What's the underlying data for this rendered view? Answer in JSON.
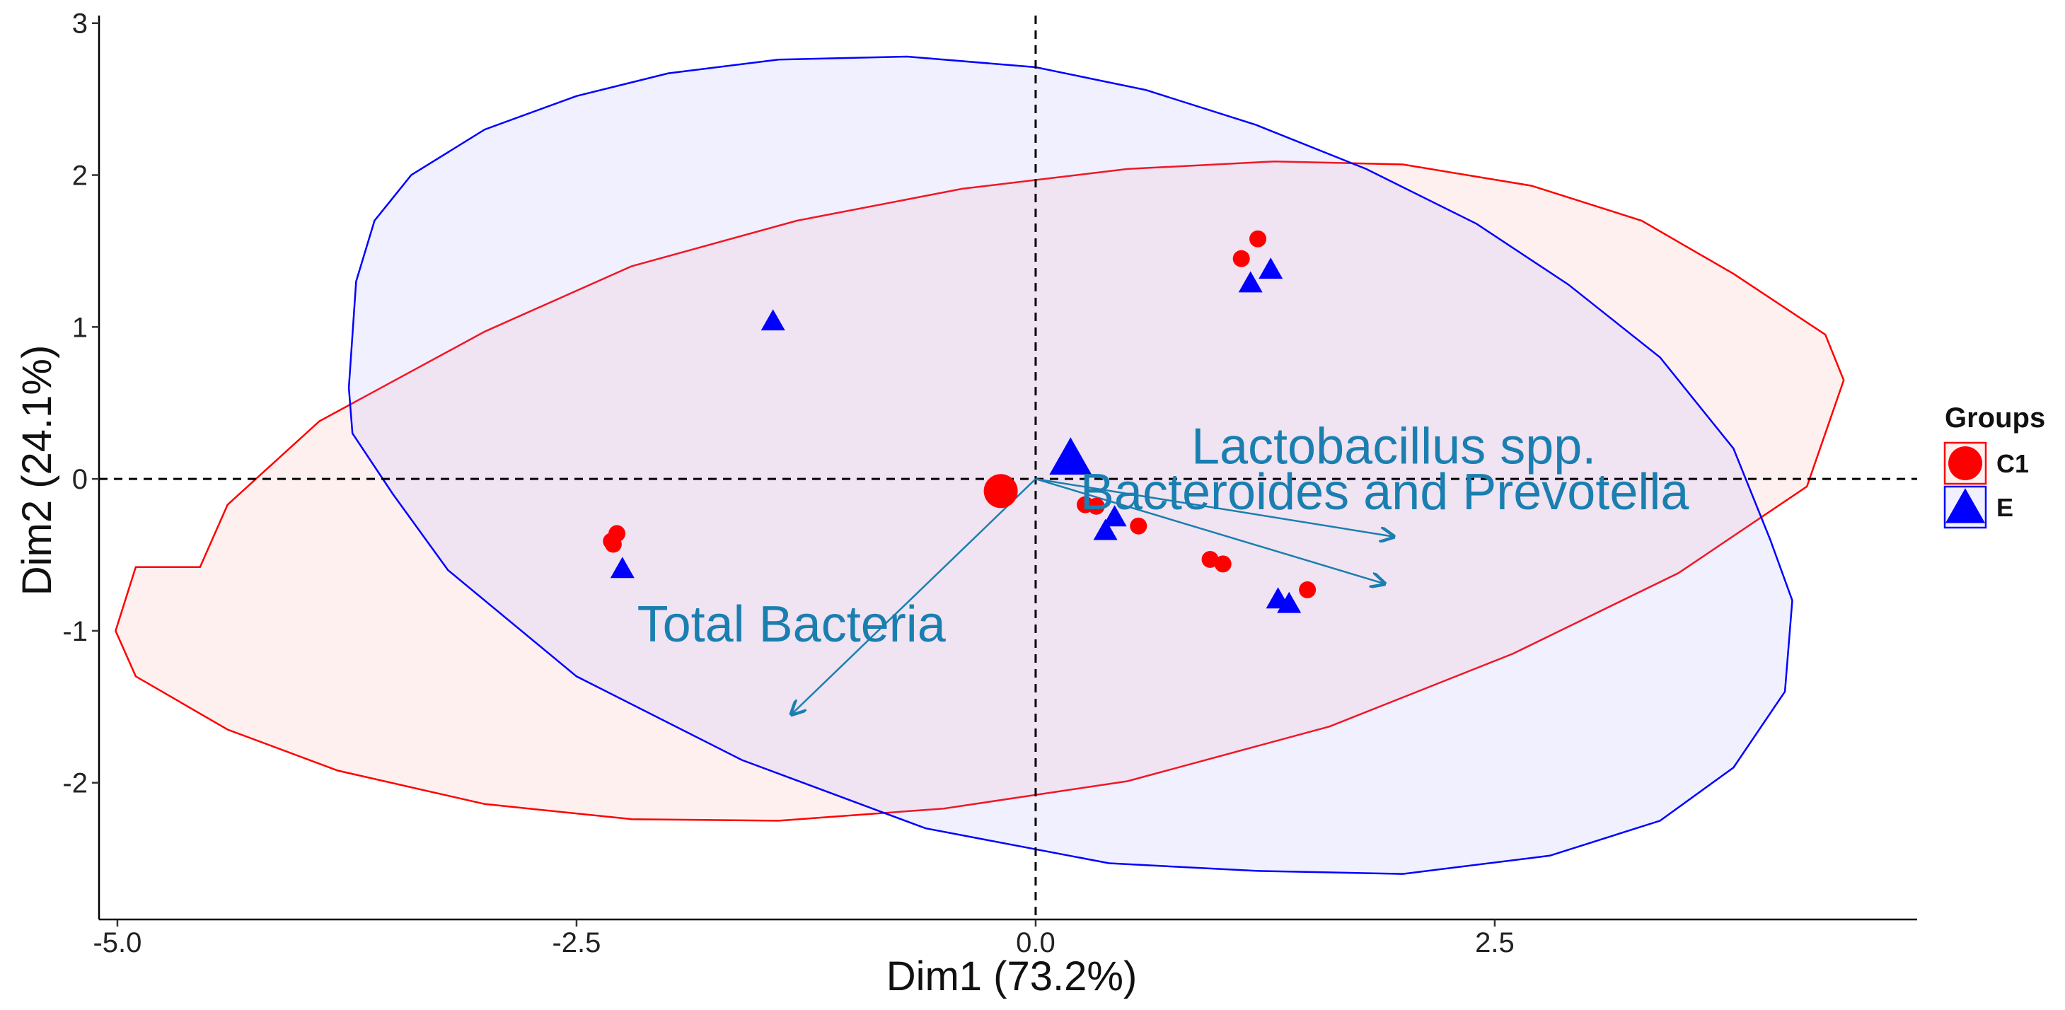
{
  "chart_data": {
    "type": "scatter",
    "subtype": "PCA biplot",
    "xlabel": "Dim1 (73.2%)",
    "ylabel": "Dim2 (24.1%)",
    "xlim": [
      -5.1,
      4.8
    ],
    "ylim": [
      -2.9,
      3.05
    ],
    "xticks": [
      -5.0,
      -2.5,
      0.0,
      2.5
    ],
    "xtick_labels": [
      "-5.0",
      "-2.5",
      "0.0",
      "2.5"
    ],
    "yticks": [
      -2,
      -1,
      0,
      1,
      2,
      3
    ],
    "ytick_labels": [
      "-2",
      "-1",
      "0",
      "1",
      "2",
      "3"
    ],
    "reference_lines": {
      "x": 0,
      "y": 0,
      "style": "dashed"
    },
    "legend": {
      "title": "Groups",
      "position": "right"
    },
    "series": [
      {
        "name": "C1",
        "marker": "circle",
        "color": "#ff0000",
        "fill": "#ff9999",
        "points": [
          {
            "x": 1.12,
            "y": 1.45
          },
          {
            "x": 1.21,
            "y": 1.58
          },
          {
            "x": -2.28,
            "y": -0.36
          },
          {
            "x": -2.31,
            "y": -0.41
          },
          {
            "x": -2.3,
            "y": -0.43
          },
          {
            "x": 0.27,
            "y": -0.17
          },
          {
            "x": 0.33,
            "y": -0.18
          },
          {
            "x": 0.56,
            "y": -0.31
          },
          {
            "x": 0.95,
            "y": -0.53
          },
          {
            "x": 1.02,
            "y": -0.56
          },
          {
            "x": 1.48,
            "y": -0.73
          }
        ],
        "centroid": {
          "x": -0.19,
          "y": -0.08
        },
        "ellipse": [
          [
            -4.55,
            -0.58
          ],
          [
            -4.4,
            -0.17
          ],
          [
            -3.9,
            0.38
          ],
          [
            -3.0,
            0.97
          ],
          [
            -2.2,
            1.4
          ],
          [
            -1.3,
            1.7
          ],
          [
            -0.4,
            1.91
          ],
          [
            0.5,
            2.04
          ],
          [
            1.3,
            2.09
          ],
          [
            2.0,
            2.07
          ],
          [
            2.7,
            1.93
          ],
          [
            3.3,
            1.7
          ],
          [
            3.8,
            1.35
          ],
          [
            4.3,
            0.95
          ],
          [
            4.4,
            0.65
          ],
          [
            4.3,
            0.3
          ],
          [
            4.2,
            -0.05
          ],
          [
            3.5,
            -0.62
          ],
          [
            2.6,
            -1.15
          ],
          [
            1.6,
            -1.63
          ],
          [
            0.5,
            -1.99
          ],
          [
            -0.5,
            -2.17
          ],
          [
            -1.4,
            -2.25
          ],
          [
            -2.2,
            -2.24
          ],
          [
            -3.0,
            -2.14
          ],
          [
            -3.8,
            -1.92
          ],
          [
            -4.4,
            -1.65
          ],
          [
            -4.9,
            -1.3
          ],
          [
            -5.01,
            -1.0
          ],
          [
            -4.9,
            -0.58
          ]
        ]
      },
      {
        "name": "E",
        "marker": "triangle",
        "color": "#0000ff",
        "fill": "#9999ff",
        "points": [
          {
            "x": -1.43,
            "y": 1.03
          },
          {
            "x": 1.17,
            "y": 1.28
          },
          {
            "x": 1.28,
            "y": 1.37
          },
          {
            "x": -2.25,
            "y": -0.6
          },
          {
            "x": 0.43,
            "y": -0.26
          },
          {
            "x": 0.38,
            "y": -0.35
          },
          {
            "x": 1.32,
            "y": -0.8
          },
          {
            "x": 1.38,
            "y": -0.83
          }
        ],
        "centroid": {
          "x": 0.19,
          "y": 0.12
        },
        "ellipse": [
          [
            -3.74,
            0.6
          ],
          [
            -3.7,
            1.3
          ],
          [
            -3.6,
            1.7
          ],
          [
            -3.4,
            2.0
          ],
          [
            -3.0,
            2.3
          ],
          [
            -2.5,
            2.52
          ],
          [
            -2.0,
            2.67
          ],
          [
            -1.4,
            2.76
          ],
          [
            -0.7,
            2.78
          ],
          [
            0.0,
            2.71
          ],
          [
            0.6,
            2.56
          ],
          [
            1.2,
            2.33
          ],
          [
            1.8,
            2.04
          ],
          [
            2.4,
            1.68
          ],
          [
            2.9,
            1.28
          ],
          [
            3.4,
            0.8
          ],
          [
            3.8,
            0.2
          ],
          [
            4.0,
            -0.4
          ],
          [
            4.12,
            -0.8
          ],
          [
            4.08,
            -1.4
          ],
          [
            3.8,
            -1.9
          ],
          [
            3.4,
            -2.25
          ],
          [
            2.8,
            -2.48
          ],
          [
            2.0,
            -2.6
          ],
          [
            1.2,
            -2.58
          ],
          [
            0.4,
            -2.53
          ],
          [
            -0.6,
            -2.3
          ],
          [
            -1.6,
            -1.85
          ],
          [
            -2.5,
            -1.3
          ],
          [
            -3.2,
            -0.6
          ],
          [
            -3.5,
            -0.1
          ],
          [
            -3.72,
            0.3
          ]
        ]
      }
    ],
    "variables": [
      {
        "name": "Lactobacillus spp.",
        "end": [
          1.95,
          -0.38
        ],
        "label_text": "Lactobacillus spp.",
        "label_pos": [
          1.95,
          0.1
        ]
      },
      {
        "name": "Bacteroides and Prevotella",
        "end": [
          1.9,
          -0.69
        ],
        "label_text": "Bacteroides and Prevotella",
        "label_pos": [
          1.9,
          -0.2
        ]
      },
      {
        "name": "Total Bacteria",
        "end": [
          -1.33,
          -1.55
        ],
        "label_text": "Total Bacteria",
        "label_pos": [
          -1.33,
          -1.07
        ]
      }
    ],
    "variable_color": "#1a7fb0"
  }
}
